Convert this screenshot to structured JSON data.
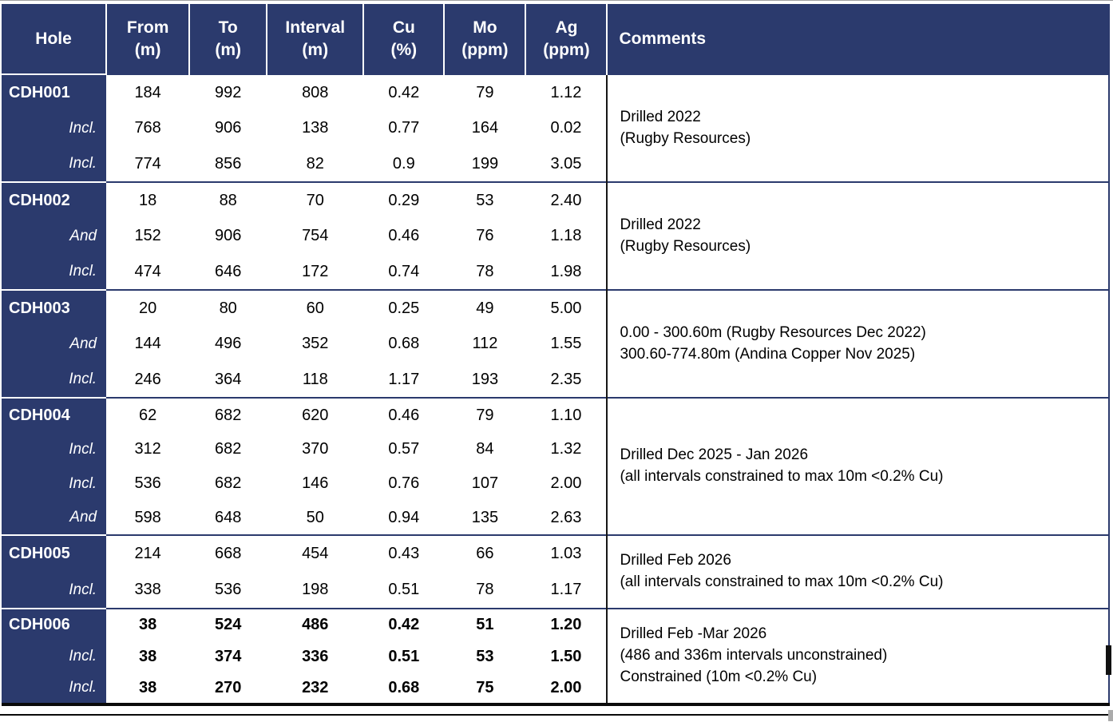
{
  "colors": {
    "header_navy": "#2b3a6d",
    "header_text": "#ffffff",
    "body_text": "#000000",
    "group_separator": "#2b3a6d",
    "comments_border": "#161616"
  },
  "table": {
    "columns": [
      {
        "title": "Hole",
        "unit": ""
      },
      {
        "title": "From",
        "unit": "(m)"
      },
      {
        "title": "To",
        "unit": "(m)"
      },
      {
        "title": "Interval",
        "unit": "(m)"
      },
      {
        "title": "Cu",
        "unit": "(%)"
      },
      {
        "title": "Mo",
        "unit": "(ppm)"
      },
      {
        "title": "Ag",
        "unit": "(ppm)"
      },
      {
        "title": "Comments",
        "unit": ""
      }
    ],
    "groups": [
      {
        "hole": "CDH001",
        "bold": false,
        "comment_lines": [
          "Drilled 2022",
          "(Rugby Resources)"
        ],
        "rows": [
          {
            "label": "CDH001",
            "from": "184",
            "to": "992",
            "interval": "808",
            "cu": "0.42",
            "mo": "79",
            "ag": "1.12"
          },
          {
            "label": "Incl.",
            "from": "768",
            "to": "906",
            "interval": "138",
            "cu": "0.77",
            "mo": "164",
            "ag": "0.02"
          },
          {
            "label": "Incl.",
            "from": "774",
            "to": "856",
            "interval": "82",
            "cu": "0.9",
            "mo": "199",
            "ag": "3.05"
          }
        ]
      },
      {
        "hole": "CDH002",
        "bold": false,
        "comment_lines": [
          "Drilled 2022",
          "(Rugby Resources)"
        ],
        "rows": [
          {
            "label": "CDH002",
            "from": "18",
            "to": "88",
            "interval": "70",
            "cu": "0.29",
            "mo": "53",
            "ag": "2.40"
          },
          {
            "label": "And",
            "from": "152",
            "to": "906",
            "interval": "754",
            "cu": "0.46",
            "mo": "76",
            "ag": "1.18"
          },
          {
            "label": "Incl.",
            "from": "474",
            "to": "646",
            "interval": "172",
            "cu": "0.74",
            "mo": "78",
            "ag": "1.98"
          }
        ]
      },
      {
        "hole": "CDH003",
        "bold": false,
        "comment_lines": [
          "0.00 - 300.60m (Rugby Resources Dec 2022)",
          "300.60-774.80m (Andina Copper Nov 2025)"
        ],
        "rows": [
          {
            "label": "CDH003",
            "from": "20",
            "to": "80",
            "interval": "60",
            "cu": "0.25",
            "mo": "49",
            "ag": "5.00"
          },
          {
            "label": "And",
            "from": "144",
            "to": "496",
            "interval": "352",
            "cu": "0.68",
            "mo": "112",
            "ag": "1.55"
          },
          {
            "label": "Incl.",
            "from": "246",
            "to": "364",
            "interval": "118",
            "cu": "1.17",
            "mo": "193",
            "ag": "2.35"
          }
        ]
      },
      {
        "hole": "CDH004",
        "bold": false,
        "comment_lines": [
          "Drilled Dec 2025 - Jan 2026",
          "(all intervals constrained to max 10m <0.2% Cu)"
        ],
        "rows": [
          {
            "label": "CDH004",
            "from": "62",
            "to": "682",
            "interval": "620",
            "cu": "0.46",
            "mo": "79",
            "ag": "1.10"
          },
          {
            "label": "Incl.",
            "from": "312",
            "to": "682",
            "interval": "370",
            "cu": "0.57",
            "mo": "84",
            "ag": "1.32"
          },
          {
            "label": "Incl.",
            "from": "536",
            "to": "682",
            "interval": "146",
            "cu": "0.76",
            "mo": "107",
            "ag": "2.00"
          },
          {
            "label": "And",
            "from": "598",
            "to": "648",
            "interval": "50",
            "cu": "0.94",
            "mo": "135",
            "ag": "2.63"
          }
        ]
      },
      {
        "hole": "CDH005",
        "bold": false,
        "comment_lines": [
          "Drilled Feb 2026",
          "(all intervals constrained to max 10m <0.2% Cu)"
        ],
        "rows": [
          {
            "label": "CDH005",
            "from": "214",
            "to": "668",
            "interval": "454",
            "cu": "0.43",
            "mo": "66",
            "ag": "1.03"
          },
          {
            "label": "Incl.",
            "from": "338",
            "to": "536",
            "interval": "198",
            "cu": "0.51",
            "mo": "78",
            "ag": "1.17"
          }
        ]
      },
      {
        "hole": "CDH006",
        "bold": true,
        "comment_lines": [
          "Drilled Feb -Mar 2026",
          "(486 and 336m intervals unconstrained)",
          "Constrained (10m <0.2% Cu)"
        ],
        "rows": [
          {
            "label": "CDH006",
            "from": "38",
            "to": "524",
            "interval": "486",
            "cu": "0.42",
            "mo": "51",
            "ag": "1.20"
          },
          {
            "label": "Incl.",
            "from": "38",
            "to": "374",
            "interval": "336",
            "cu": "0.51",
            "mo": "53",
            "ag": "1.50"
          },
          {
            "label": "Incl.",
            "from": "38",
            "to": "270",
            "interval": "232",
            "cu": "0.68",
            "mo": "75",
            "ag": "2.00"
          }
        ]
      }
    ]
  }
}
